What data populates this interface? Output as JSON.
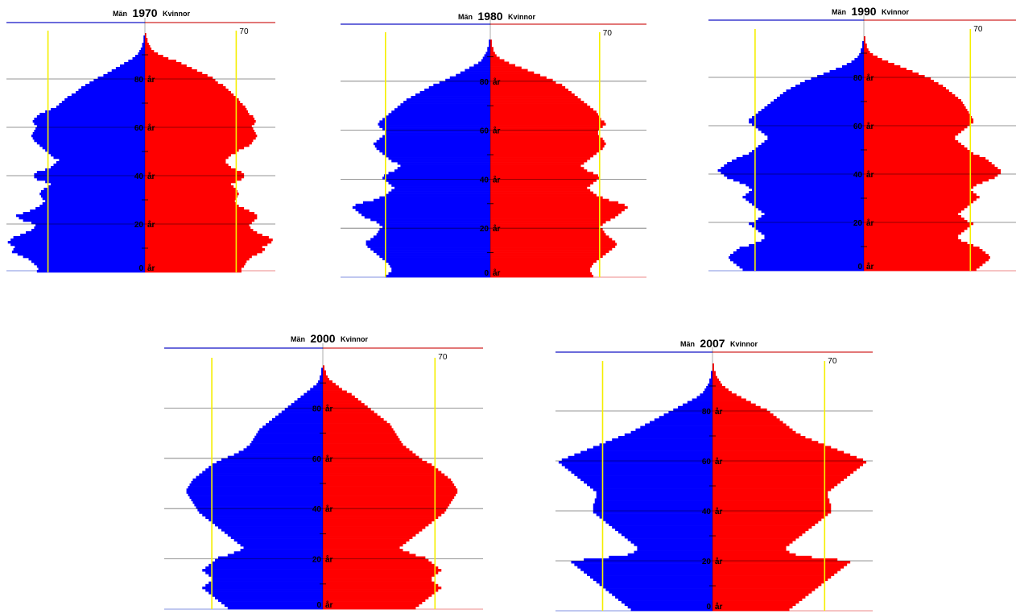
{
  "chart_data": [
    {
      "type": "bar",
      "year": "1970",
      "left_label": "Män",
      "right_label": "Kvinnor",
      "ref_label": "70",
      "age_label_suffix": "år",
      "age_ticks": [
        0,
        20,
        40,
        60,
        80
      ],
      "max_age": 100,
      "ref_value": 70,
      "xlim": [
        0,
        100
      ],
      "series": [
        {
          "name": "Män",
          "color": "#0000ff",
          "values": [
            78,
            77,
            78,
            80,
            82,
            84,
            88,
            92,
            96,
            95,
            94,
            97,
            99,
            97,
            95,
            90,
            86,
            82,
            80,
            79,
            82,
            88,
            91,
            93,
            88,
            83,
            79,
            76,
            74,
            72,
            74,
            75,
            76,
            75,
            73,
            70,
            68,
            72,
            78,
            80,
            80,
            78,
            72,
            68,
            66,
            64,
            62,
            66,
            68,
            70,
            72,
            74,
            76,
            78,
            80,
            81,
            82,
            81,
            80,
            79,
            78,
            80,
            81,
            80,
            78,
            76,
            72,
            68,
            64,
            62,
            60,
            58,
            56,
            53,
            50,
            48,
            46,
            43,
            40,
            37,
            34,
            30,
            27,
            24,
            21,
            18,
            15,
            12,
            9,
            7,
            5,
            4,
            3,
            2,
            2,
            1,
            1,
            1,
            0,
            0,
            0
          ]
        },
        {
          "name": "Kvinnor",
          "color": "#ff0000",
          "values": [
            74,
            74,
            76,
            77,
            78,
            80,
            82,
            86,
            90,
            92,
            90,
            94,
            97,
            98,
            95,
            90,
            86,
            83,
            81,
            80,
            82,
            84,
            86,
            86,
            84,
            80,
            76,
            72,
            70,
            69,
            70,
            71,
            72,
            71,
            70,
            68,
            66,
            70,
            74,
            76,
            76,
            74,
            70,
            66,
            64,
            62,
            62,
            64,
            66,
            70,
            72,
            76,
            80,
            82,
            83,
            85,
            86,
            85,
            84,
            83,
            82,
            84,
            85,
            84,
            83,
            80,
            79,
            78,
            77,
            75,
            73,
            72,
            70,
            68,
            66,
            64,
            62,
            60,
            56,
            54,
            52,
            48,
            44,
            40,
            36,
            32,
            28,
            24,
            18,
            14,
            10,
            7,
            5,
            4,
            3,
            2,
            2,
            1,
            1,
            0,
            0
          ]
        }
      ]
    },
    {
      "type": "bar",
      "year": "1980",
      "left_label": "Män",
      "right_label": "Kvinnor",
      "ref_label": "70",
      "age_label_suffix": "år",
      "age_ticks": [
        0,
        20,
        40,
        60,
        80
      ],
      "max_age": 100,
      "ref_value": 70,
      "xlim": [
        0,
        100
      ],
      "series": [
        {
          "name": "Män",
          "color": "#0000ff",
          "values": [
            70,
            68,
            66,
            66,
            67,
            68,
            70,
            72,
            74,
            76,
            78,
            80,
            82,
            83,
            83,
            80,
            78,
            76,
            75,
            74,
            72,
            74,
            76,
            80,
            84,
            86,
            88,
            90,
            92,
            90,
            85,
            78,
            74,
            70,
            68,
            66,
            64,
            66,
            68,
            70,
            72,
            71,
            68,
            64,
            62,
            60,
            62,
            66,
            68,
            70,
            72,
            74,
            76,
            77,
            78,
            76,
            74,
            72,
            70,
            70,
            72,
            74,
            75,
            74,
            72,
            70,
            68,
            66,
            64,
            62,
            60,
            58,
            56,
            53,
            50,
            47,
            44,
            41,
            38,
            34,
            30,
            27,
            23,
            20,
            17,
            14,
            11,
            8,
            6,
            5,
            4,
            3,
            2,
            2,
            1,
            1,
            1,
            0,
            0,
            0,
            0
          ]
        },
        {
          "name": "Kvinnor",
          "color": "#ff0000",
          "values": [
            66,
            65,
            64,
            64,
            65,
            66,
            68,
            70,
            72,
            74,
            76,
            78,
            80,
            81,
            80,
            78,
            76,
            74,
            73,
            72,
            70,
            72,
            74,
            77,
            80,
            82,
            84,
            86,
            88,
            86,
            82,
            76,
            72,
            68,
            66,
            64,
            62,
            64,
            66,
            68,
            70,
            69,
            66,
            62,
            60,
            58,
            60,
            62,
            64,
            66,
            68,
            70,
            72,
            73,
            74,
            73,
            72,
            70,
            69,
            69,
            70,
            72,
            74,
            73,
            71,
            70,
            69,
            68,
            66,
            64,
            62,
            60,
            58,
            56,
            54,
            52,
            50,
            48,
            46,
            42,
            40,
            36,
            32,
            28,
            24,
            20,
            16,
            12,
            9,
            6,
            4,
            3,
            2,
            2,
            1,
            1,
            1,
            0,
            0,
            0,
            0
          ]
        }
      ]
    },
    {
      "type": "bar",
      "year": "1990",
      "left_label": "Män",
      "right_label": "Kvinnor",
      "ref_label": "70",
      "age_label_suffix": "år",
      "age_ticks": [
        0,
        20,
        40,
        60,
        80
      ],
      "max_age": 100,
      "ref_value": 70,
      "xlim": [
        0,
        100
      ],
      "series": [
        {
          "name": "Män",
          "color": "#0000ff",
          "values": [
            78,
            80,
            82,
            84,
            86,
            87,
            86,
            84,
            82,
            80,
            74,
            70,
            66,
            64,
            64,
            66,
            68,
            70,
            72,
            74,
            70,
            68,
            66,
            64,
            66,
            68,
            70,
            72,
            74,
            76,
            78,
            76,
            74,
            72,
            74,
            76,
            80,
            84,
            88,
            90,
            92,
            94,
            92,
            90,
            88,
            85,
            82,
            78,
            74,
            72,
            70,
            68,
            66,
            64,
            62,
            62,
            64,
            66,
            68,
            70,
            72,
            74,
            74,
            72,
            70,
            68,
            66,
            64,
            62,
            60,
            58,
            56,
            54,
            52,
            50,
            47,
            44,
            41,
            38,
            34,
            30,
            26,
            22,
            18,
            14,
            11,
            8,
            6,
            4,
            3,
            2,
            2,
            1,
            1,
            1,
            0,
            0,
            0,
            0,
            0,
            0
          ]
        },
        {
          "name": "Kvinnor",
          "color": "#ff0000",
          "values": [
            74,
            76,
            78,
            80,
            82,
            83,
            82,
            80,
            78,
            76,
            72,
            68,
            64,
            62,
            62,
            64,
            66,
            68,
            70,
            72,
            68,
            66,
            64,
            62,
            64,
            66,
            68,
            70,
            72,
            74,
            76,
            74,
            72,
            70,
            72,
            74,
            78,
            82,
            86,
            88,
            90,
            90,
            88,
            86,
            84,
            82,
            80,
            76,
            72,
            70,
            68,
            66,
            64,
            62,
            60,
            60,
            62,
            64,
            66,
            68,
            70,
            72,
            72,
            71,
            70,
            69,
            68,
            67,
            66,
            65,
            64,
            62,
            60,
            58,
            56,
            54,
            52,
            49,
            46,
            44,
            40,
            36,
            32,
            28,
            24,
            20,
            16,
            12,
            9,
            6,
            4,
            3,
            2,
            2,
            1,
            1,
            1,
            0,
            0,
            0,
            0
          ]
        }
      ]
    },
    {
      "type": "bar",
      "year": "2000",
      "left_label": "Män",
      "right_label": "Kvinnor",
      "ref_label": "70",
      "age_label_suffix": "år",
      "age_ticks": [
        0,
        20,
        40,
        60,
        80
      ],
      "max_age": 100,
      "ref_value": 70,
      "xlim": [
        0,
        100
      ],
      "series": [
        {
          "name": "Män",
          "color": "#0000ff",
          "values": [
            60,
            62,
            64,
            66,
            68,
            70,
            72,
            74,
            76,
            74,
            72,
            70,
            70,
            72,
            74,
            76,
            74,
            72,
            70,
            68,
            66,
            60,
            56,
            52,
            50,
            52,
            54,
            56,
            58,
            60,
            62,
            64,
            66,
            68,
            70,
            72,
            74,
            76,
            78,
            79,
            80,
            81,
            82,
            83,
            84,
            85,
            86,
            86,
            85,
            84,
            83,
            82,
            80,
            78,
            76,
            74,
            72,
            70,
            67,
            64,
            60,
            56,
            53,
            50,
            48,
            46,
            45,
            44,
            43,
            42,
            41,
            40,
            38,
            36,
            34,
            32,
            30,
            28,
            26,
            24,
            22,
            20,
            18,
            16,
            14,
            12,
            10,
            8,
            6,
            4,
            3,
            2,
            2,
            1,
            1,
            1,
            0,
            0,
            0,
            0,
            0
          ]
        },
        {
          "name": "Kvinnor",
          "color": "#ff0000",
          "values": [
            58,
            60,
            62,
            64,
            66,
            68,
            70,
            72,
            74,
            72,
            70,
            68,
            68,
            70,
            72,
            74,
            72,
            70,
            68,
            66,
            64,
            58,
            54,
            50,
            48,
            50,
            52,
            54,
            56,
            58,
            60,
            62,
            64,
            66,
            68,
            70,
            72,
            74,
            76,
            77,
            78,
            79,
            80,
            81,
            82,
            83,
            84,
            84,
            83,
            82,
            81,
            80,
            78,
            76,
            74,
            72,
            70,
            68,
            65,
            62,
            60,
            58,
            56,
            54,
            52,
            50,
            49,
            48,
            47,
            46,
            45,
            44,
            43,
            42,
            40,
            38,
            36,
            34,
            32,
            30,
            28,
            26,
            24,
            22,
            20,
            18,
            15,
            12,
            10,
            8,
            6,
            4,
            3,
            2,
            2,
            1,
            1,
            0,
            0,
            0,
            0
          ]
        }
      ]
    },
    {
      "type": "bar",
      "year": "2007",
      "left_label": "Män",
      "right_label": "Kvinnor",
      "ref_label": "70",
      "age_label_suffix": "år",
      "age_ticks": [
        0,
        20,
        40,
        60,
        80
      ],
      "max_age": 100,
      "ref_value": 70,
      "xlim": [
        0,
        100
      ],
      "series": [
        {
          "name": "Män",
          "color": "#0000ff",
          "values": [
            52,
            54,
            56,
            58,
            60,
            62,
            64,
            66,
            68,
            70,
            72,
            74,
            76,
            78,
            80,
            82,
            84,
            86,
            88,
            90,
            82,
            66,
            54,
            50,
            48,
            48,
            50,
            52,
            54,
            56,
            58,
            60,
            62,
            64,
            66,
            68,
            70,
            72,
            74,
            76,
            76,
            76,
            76,
            75,
            75,
            74,
            74,
            74,
            76,
            78,
            80,
            82,
            84,
            86,
            88,
            90,
            92,
            94,
            96,
            98,
            96,
            92,
            88,
            84,
            80,
            76,
            72,
            68,
            64,
            60,
            56,
            52,
            49,
            46,
            43,
            40,
            37,
            34,
            31,
            28,
            25,
            22,
            19,
            16,
            13,
            10,
            8,
            6,
            5,
            4,
            3,
            2,
            2,
            1,
            1,
            1,
            0,
            0,
            0,
            0,
            0
          ]
        },
        {
          "name": "Kvinnor",
          "color": "#ff0000",
          "values": [
            48,
            50,
            52,
            54,
            56,
            58,
            60,
            62,
            64,
            66,
            68,
            70,
            72,
            74,
            76,
            78,
            80,
            82,
            84,
            86,
            78,
            62,
            52,
            48,
            46,
            46,
            48,
            50,
            52,
            54,
            56,
            58,
            60,
            62,
            64,
            66,
            68,
            70,
            72,
            74,
            74,
            74,
            74,
            73,
            73,
            72,
            72,
            72,
            74,
            76,
            78,
            80,
            82,
            84,
            86,
            88,
            90,
            92,
            94,
            96,
            94,
            90,
            86,
            82,
            78,
            74,
            70,
            66,
            62,
            58,
            55,
            52,
            50,
            48,
            46,
            44,
            42,
            40,
            38,
            36,
            34,
            30,
            27,
            24,
            21,
            18,
            15,
            12,
            10,
            8,
            6,
            5,
            4,
            3,
            2,
            2,
            1,
            1,
            1,
            0,
            0
          ]
        }
      ]
    }
  ]
}
